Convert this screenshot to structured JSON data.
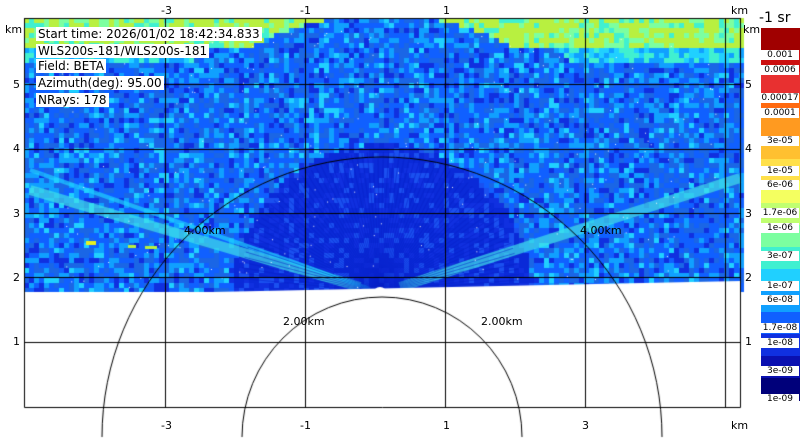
{
  "info": {
    "start_time": "Start time: 2026/01/02 18:42:34.833",
    "instrument": "WLS200s-181/WLS200s-181",
    "field": "Field: BETA",
    "azimuth": "Azimuth(deg): 95.00",
    "nrays": "NRays: 178"
  },
  "axes": {
    "x_ticks": [
      "-3",
      "-1",
      "1",
      "3"
    ],
    "y_ticks": [
      "1",
      "2",
      "3",
      "4",
      "5"
    ],
    "unit": "km"
  },
  "range_rings": [
    "2.00km",
    "4.00km"
  ],
  "colorbar": {
    "title": "-1 sr",
    "labels": [
      "0.001",
      "0.0006",
      "0.00017",
      "0.0001",
      "3e-05",
      "1e-05",
      "6e-06",
      "1.7e-06",
      "1e-06",
      "3e-07",
      "1e-07",
      "6e-08",
      "1.7e-08",
      "1e-08",
      "3e-09",
      "1e-09"
    ]
  },
  "colors": {
    "background_beta": "#1a66e6",
    "near_field": "#0a2ad8",
    "top_band": "#b8f040"
  }
}
